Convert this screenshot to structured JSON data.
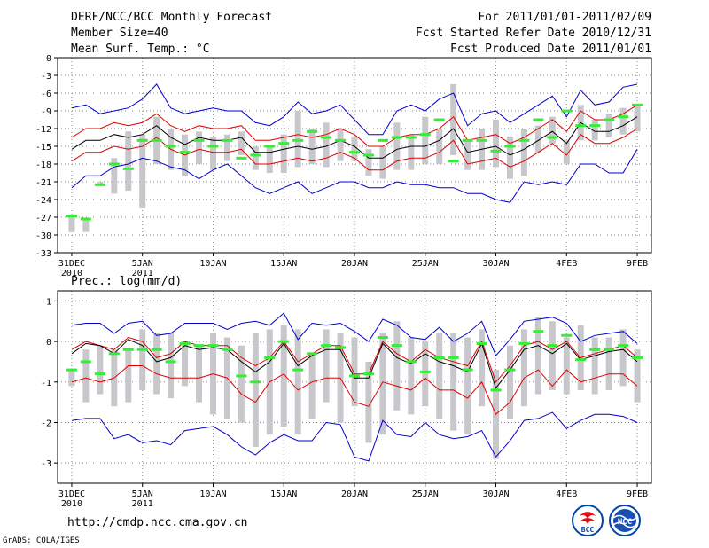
{
  "header": {
    "title": "DERF/NCC/BCC Monthly Forecast",
    "member_size": "Member Size=40",
    "period": "For 2011/01/01-2011/02/09",
    "fcst_started": "Fcst Started Refer Date 2010/12/31",
    "fcst_produced": "Fcst Produced Date 2011/01/01"
  },
  "footer": {
    "url": "http://cmdp.ncc.cma.gov.cn",
    "grads": "GrADS: COLA/IGES",
    "logo_bcc_text": "BCC",
    "logo_ncc_text": "NCC"
  },
  "colors": {
    "spread": "#c8c8cc",
    "observed": "#33ee33",
    "mean": "#000000",
    "inner_band": "#dd0000",
    "outer_band": "#0000cc"
  },
  "chart_data": [
    {
      "type": "line",
      "title": "Mean Surf. Temp.: °C",
      "x_ticks": [
        {
          "day": 0,
          "label": "31DEC",
          "label2": "2010"
        },
        {
          "day": 5,
          "label": "5JAN",
          "label2": "2011"
        },
        {
          "day": 10,
          "label": "10JAN"
        },
        {
          "day": 15,
          "label": "15JAN"
        },
        {
          "day": 20,
          "label": "20JAN"
        },
        {
          "day": 25,
          "label": "25JAN"
        },
        {
          "day": 30,
          "label": "30JAN"
        },
        {
          "day": 35,
          "label": "4FEB"
        },
        {
          "day": 40,
          "label": "9FEB"
        }
      ],
      "xlim": [
        -1,
        41
      ],
      "ylim": [
        -33,
        0
      ],
      "yticks": [
        0,
        -3,
        -6,
        -9,
        -12,
        -15,
        -18,
        -21,
        -24,
        -27,
        -30,
        -33
      ],
      "ytick_labels": [
        "0",
        "-3",
        "-6",
        "-9",
        "-12",
        "-15",
        "-18",
        "-21",
        "-24",
        "-27",
        "-30",
        "-33"
      ],
      "series": [
        {
          "name": "spread-top",
          "values": [
            -26.5,
            -27.5,
            -21,
            -17,
            -12.5,
            -13,
            -10,
            -12,
            -13,
            -12.5,
            -13.5,
            -13,
            -12.5,
            -15,
            -15,
            -13,
            -9,
            -12,
            -11,
            -12,
            -13.5,
            -15.5,
            -15,
            -11,
            -13,
            -10,
            -12,
            -4.5,
            -14,
            -12,
            -10.5,
            -13.5,
            -12,
            -11.5,
            -10,
            -14,
            -8,
            -10.5,
            -9.5,
            -8.5,
            -8
          ]
        },
        {
          "name": "spread-bottom",
          "values": [
            -29.5,
            -29.5,
            -21.5,
            -23,
            -22.5,
            -25.5,
            -18,
            -19,
            -20,
            -18,
            -19,
            -17.5,
            -16.5,
            -19,
            -19.5,
            -19.5,
            -18.5,
            -18,
            -18.5,
            -17.5,
            -17.5,
            -20,
            -20.5,
            -19,
            -19,
            -18,
            -18,
            -16.5,
            -19,
            -19,
            -18.5,
            -20.5,
            -20,
            -16,
            -14.5,
            -18,
            -14,
            -14,
            -13.5,
            -13,
            -12.5
          ]
        },
        {
          "name": "observed",
          "values": [
            -26.8,
            -27.3,
            -21.5,
            -18,
            -18.8,
            -14,
            -14,
            -15,
            -16,
            -14,
            -15,
            -14,
            -17,
            -16.5,
            -15,
            -14.5,
            -14,
            -12.5,
            -13.5,
            -14,
            -16,
            -16.5,
            -14,
            -13.5,
            -13.5,
            -13,
            -10.5,
            -17.5,
            -14,
            -14,
            -15.8,
            -15,
            -14,
            -10.5,
            -13.5,
            -9,
            -11.5,
            -11.5,
            -10.5,
            -10,
            -8
          ]
        },
        {
          "name": "ensemble-mean",
          "values": [
            -15.5,
            -14,
            -14,
            -13,
            -13.5,
            -13,
            -11.5,
            -13.5,
            -14.7,
            -13.5,
            -14,
            -14,
            -13.5,
            -16,
            -16,
            -15.5,
            -15,
            -15.5,
            -15,
            -14,
            -15,
            -17,
            -17,
            -15.5,
            -15,
            -15,
            -14,
            -12,
            -16,
            -15.5,
            -15,
            -16.5,
            -15.5,
            -14,
            -12.5,
            -14.5,
            -11,
            -12.5,
            -12.5,
            -11.5,
            -10
          ]
        },
        {
          "name": "upper-inner",
          "values": [
            -13.5,
            -12,
            -12,
            -11,
            -11.5,
            -11,
            -9.5,
            -11.5,
            -12.5,
            -11.5,
            -12,
            -12,
            -11.5,
            -14,
            -14,
            -13.5,
            -13,
            -13.5,
            -13,
            -12,
            -13,
            -15,
            -15,
            -13.5,
            -13,
            -13,
            -12,
            -10,
            -14,
            -13.5,
            -13,
            -14.5,
            -13.5,
            -12,
            -10.5,
            -12.5,
            -9,
            -10.5,
            -10.5,
            -9.5,
            -8
          ]
        },
        {
          "name": "lower-inner",
          "values": [
            -17.5,
            -16,
            -16,
            -15,
            -15.5,
            -15,
            -13.5,
            -15.5,
            -16.5,
            -15.5,
            -16,
            -16,
            -15.5,
            -18,
            -18,
            -17.5,
            -17,
            -17.5,
            -17,
            -16,
            -17,
            -19,
            -19,
            -17.5,
            -17,
            -17,
            -16,
            -14,
            -18,
            -17.5,
            -17,
            -18.5,
            -17.5,
            -16,
            -14.5,
            -16.5,
            -13,
            -14.5,
            -14.5,
            -13.5,
            -12
          ]
        },
        {
          "name": "upper-outer",
          "values": [
            -8.5,
            -8,
            -9.5,
            -9,
            -8.5,
            -7,
            -4.5,
            -8.5,
            -9.5,
            -9,
            -8.5,
            -9,
            -9,
            -11,
            -11.5,
            -10,
            -7.5,
            -9.5,
            -9,
            -8,
            -10.5,
            -13,
            -13,
            -9,
            -8,
            -9,
            -7,
            -6,
            -11.5,
            -9.5,
            -9,
            -11,
            -9.5,
            -8,
            -6.5,
            -10,
            -5.5,
            -8,
            -7.5,
            -5,
            -4.5
          ]
        },
        {
          "name": "lower-outer",
          "values": [
            -22,
            -20,
            -20,
            -18.5,
            -18,
            -17,
            -17.5,
            -18.5,
            -19,
            -20.5,
            -19,
            -18,
            -20,
            -22,
            -23,
            -22,
            -21,
            -23,
            -22,
            -21,
            -21,
            -22,
            -22,
            -21,
            -21.5,
            -21.5,
            -22,
            -22,
            -23,
            -23,
            -24,
            -24.5,
            -21,
            -21.5,
            -21,
            -21.5,
            -18,
            -18,
            -19.5,
            -19.5,
            -15.5
          ]
        }
      ]
    },
    {
      "type": "line",
      "title": "Prec.: log(mm/d)",
      "x_ticks": [
        {
          "day": 0,
          "label": "31DEC",
          "label2": "2010"
        },
        {
          "day": 5,
          "label": "5JAN",
          "label2": "2011"
        },
        {
          "day": 10,
          "label": "10JAN"
        },
        {
          "day": 15,
          "label": "15JAN"
        },
        {
          "day": 20,
          "label": "20JAN"
        },
        {
          "day": 25,
          "label": "25JAN"
        },
        {
          "day": 30,
          "label": "30JAN"
        },
        {
          "day": 35,
          "label": "4FEB"
        },
        {
          "day": 40,
          "label": "9FEB"
        }
      ],
      "xlim": [
        -1,
        41
      ],
      "ylim": [
        -3.5,
        1.25
      ],
      "yticks": [
        1,
        0,
        -1,
        -2,
        -3
      ],
      "ytick_labels": [
        "1",
        "0",
        "-1",
        "-2",
        "-3"
      ],
      "series": [
        {
          "name": "spread-top",
          "values": [
            -0.7,
            -0.2,
            -0.1,
            -0.2,
            -0.2,
            0.3,
            0.2,
            0.2,
            0.0,
            -0.1,
            0.2,
            0.1,
            -0.1,
            0.2,
            0.3,
            0.4,
            0.3,
            -0.3,
            0.3,
            0.2,
            0.1,
            -0.5,
            0.2,
            0.5,
            0.1,
            0.0,
            0.2,
            0.2,
            0.1,
            0.3,
            -0.7,
            -0.1,
            0.3,
            0.6,
            0.5,
            0.1,
            0.4,
            0.1,
            0.1,
            0.3,
            -0.2
          ]
        },
        {
          "name": "spread-bottom",
          "values": [
            -1.1,
            -1.5,
            -1.3,
            -1.6,
            -1.5,
            -1.2,
            -1.3,
            -1.4,
            -1.1,
            -1.5,
            -1.8,
            -1.9,
            -2.0,
            -2.6,
            -2.3,
            -2.1,
            -2.3,
            -1.9,
            -1.5,
            -2.0,
            -1.6,
            -2.5,
            -2.3,
            -1.7,
            -1.8,
            -1.6,
            -1.9,
            -2.2,
            -2.3,
            -1.6,
            -2.9,
            -1.9,
            -1.6,
            -1.3,
            -1.2,
            -1.3,
            -1.2,
            -1.3,
            -1.2,
            -1.1,
            -1.5
          ]
        },
        {
          "name": "observed",
          "values": [
            -0.7,
            -0.5,
            -0.8,
            -0.3,
            -0.2,
            -0.2,
            -0.2,
            -0.5,
            -0.05,
            -0.1,
            -0.1,
            -0.2,
            -0.85,
            -1.0,
            -0.4,
            0.0,
            -0.7,
            -0.3,
            -0.1,
            -0.15,
            -0.85,
            -0.8,
            0.1,
            -0.1,
            -0.5,
            -0.75,
            -0.4,
            -0.4,
            -0.7,
            -0.05,
            -1.2,
            -0.7,
            -0.05,
            0.25,
            -0.1,
            0.15,
            -0.45,
            -0.2,
            -0.2,
            -0.1,
            -0.4
          ]
        },
        {
          "name": "ensemble-mean",
          "values": [
            -0.3,
            -0.05,
            -0.1,
            -0.3,
            0.05,
            -0.1,
            -0.5,
            -0.4,
            -0.1,
            -0.2,
            -0.15,
            -0.2,
            -0.5,
            -0.75,
            -0.5,
            -0.05,
            -0.6,
            -0.35,
            -0.2,
            -0.2,
            -0.9,
            -0.9,
            -0.05,
            -0.4,
            -0.55,
            -0.3,
            -0.5,
            -0.6,
            -0.75,
            -0.05,
            -1.15,
            -0.7,
            -0.2,
            -0.1,
            -0.3,
            -0.05,
            -0.45,
            -0.35,
            -0.25,
            -0.2,
            -0.5
          ]
        },
        {
          "name": "upper-inner",
          "values": [
            -0.2,
            0.0,
            -0.1,
            -0.2,
            0.1,
            0.0,
            -0.4,
            -0.3,
            0.0,
            -0.1,
            -0.1,
            -0.1,
            -0.4,
            -0.6,
            -0.4,
            0.0,
            -0.5,
            -0.3,
            -0.1,
            -0.1,
            -0.8,
            -0.8,
            0.0,
            -0.3,
            -0.5,
            -0.2,
            -0.4,
            -0.5,
            -0.6,
            0.0,
            -1.0,
            -0.6,
            -0.1,
            0.0,
            -0.2,
            0.0,
            -0.4,
            -0.3,
            -0.2,
            -0.1,
            -0.4
          ]
        },
        {
          "name": "lower-inner",
          "values": [
            -1.0,
            -0.9,
            -1.0,
            -0.9,
            -0.6,
            -0.6,
            -0.8,
            -0.9,
            -0.9,
            -0.9,
            -0.8,
            -0.9,
            -1.3,
            -1.5,
            -1.0,
            -0.8,
            -1.2,
            -1.0,
            -0.9,
            -0.9,
            -1.5,
            -1.6,
            -1.0,
            -1.1,
            -1.2,
            -0.9,
            -1.2,
            -1.2,
            -1.4,
            -1.0,
            -1.8,
            -1.5,
            -0.9,
            -0.7,
            -1.1,
            -0.7,
            -1.0,
            -0.9,
            -0.8,
            -0.8,
            -1.1
          ]
        },
        {
          "name": "upper-outer",
          "values": [
            0.4,
            0.45,
            0.45,
            0.2,
            0.45,
            0.5,
            0.15,
            0.2,
            0.45,
            0.45,
            0.45,
            0.3,
            0.45,
            0.5,
            0.4,
            0.7,
            0.05,
            0.45,
            0.4,
            0.45,
            0.25,
            0.0,
            0.55,
            0.4,
            0.1,
            0.05,
            0.35,
            0.0,
            0.2,
            0.5,
            -0.35,
            0.05,
            0.5,
            0.55,
            0.6,
            0.45,
            0.0,
            0.15,
            0.2,
            0.25,
            -0.05
          ]
        },
        {
          "name": "lower-outer",
          "values": [
            -1.95,
            -1.9,
            -1.9,
            -2.4,
            -2.3,
            -2.5,
            -2.45,
            -2.55,
            -2.2,
            -2.15,
            -2.1,
            -2.3,
            -2.6,
            -2.8,
            -2.5,
            -2.3,
            -2.45,
            -2.45,
            -2.0,
            -2.05,
            -2.85,
            -2.95,
            -1.95,
            -2.3,
            -2.35,
            -2.0,
            -2.3,
            -2.4,
            -2.35,
            -2.2,
            -2.85,
            -2.45,
            -1.95,
            -1.9,
            -1.75,
            -2.15,
            -1.95,
            -1.8,
            -1.8,
            -1.85,
            -2.0
          ]
        }
      ]
    }
  ]
}
